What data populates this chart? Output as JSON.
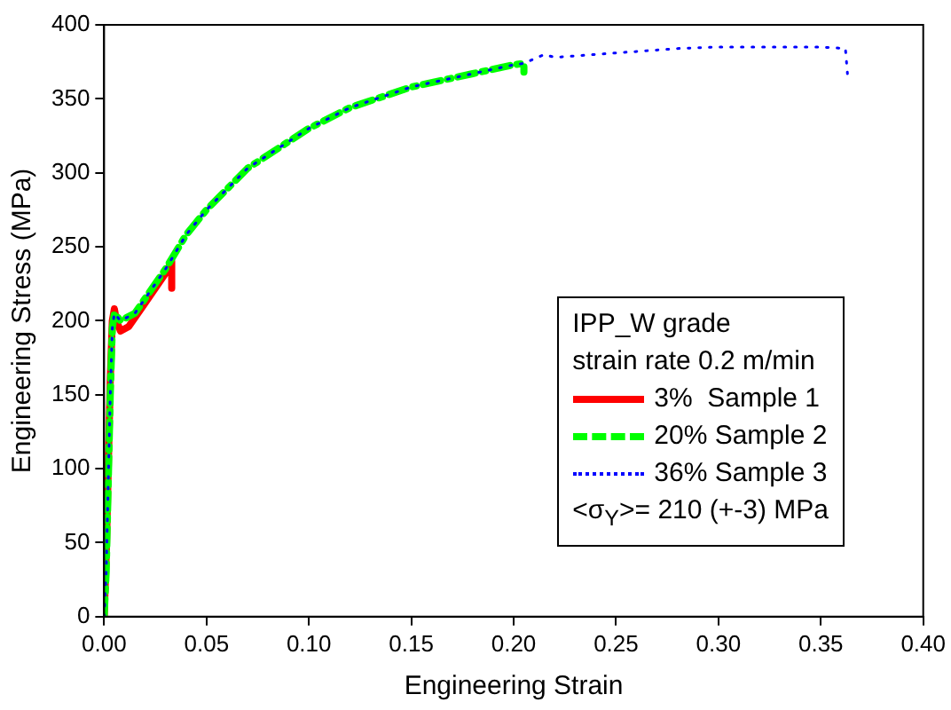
{
  "chart_data": {
    "type": "line",
    "xlabel": "Engineering Strain",
    "ylabel": "Engineering Stress (MPa)",
    "legend_title": "IPP_W grade\nstrain rate 0.2 m/min",
    "annotations": [
      "<σ$_{Y}$>= 210 (+-3) MPa"
    ],
    "xlim": [
      0,
      0.4
    ],
    "xticks": [
      {
        "value": 0,
        "label": "0.00"
      },
      {
        "value": 0.05,
        "label": "0.05"
      },
      {
        "value": 0.1,
        "label": "0.10"
      },
      {
        "value": 0.15,
        "label": "0.15"
      },
      {
        "value": 0.2,
        "label": "0.20"
      },
      {
        "value": 0.25,
        "label": "0.25"
      },
      {
        "value": 0.3,
        "label": "0.30"
      },
      {
        "value": 0.35,
        "label": "0.35"
      },
      {
        "value": 0.4,
        "label": "0.40"
      }
    ],
    "ylim": [
      0,
      400
    ],
    "yticks": [
      0,
      50,
      100,
      150,
      200,
      250,
      300,
      350,
      400
    ],
    "grid": false,
    "legend": "bottom right",
    "marker": "none",
    "series": [
      {
        "name": "3%  Sample 1",
        "color": "#ff0000",
        "line_style": "solid",
        "x": [
          0,
          0.001,
          0.002,
          0.003,
          0.004,
          0.005,
          0.006,
          0.008,
          0.012,
          0.02,
          0.03,
          0.033,
          0.033
        ],
        "values": [
          0,
          40,
          100,
          160,
          200,
          208,
          200,
          193,
          196,
          212,
          232,
          240,
          222
        ]
      },
      {
        "name": "20% Sample 2",
        "color": "#00ff00",
        "line_style": "dashed",
        "x": [
          0,
          0.001,
          0.002,
          0.003,
          0.004,
          0.005,
          0.008,
          0.015,
          0.03,
          0.04,
          0.05,
          0.07,
          0.1,
          0.12,
          0.15,
          0.18,
          0.2,
          0.205,
          0.205
        ],
        "values": [
          0,
          30,
          90,
          150,
          195,
          205,
          200,
          205,
          235,
          258,
          275,
          303,
          330,
          344,
          358,
          367,
          373,
          374,
          368
        ]
      },
      {
        "name": "36% Sample 3",
        "color": "#0000ff",
        "line_style": "dotted",
        "x": [
          0,
          0.001,
          0.002,
          0.003,
          0.004,
          0.005,
          0.008,
          0.015,
          0.03,
          0.04,
          0.05,
          0.07,
          0.1,
          0.12,
          0.15,
          0.18,
          0.2,
          0.205,
          0.215,
          0.22,
          0.25,
          0.28,
          0.3,
          0.35,
          0.362,
          0.363
        ],
        "values": [
          0,
          30,
          90,
          150,
          195,
          205,
          200,
          205,
          235,
          258,
          275,
          303,
          330,
          344,
          358,
          367,
          373,
          374,
          380,
          378,
          381,
          384,
          385,
          385,
          384,
          367
        ]
      }
    ]
  }
}
